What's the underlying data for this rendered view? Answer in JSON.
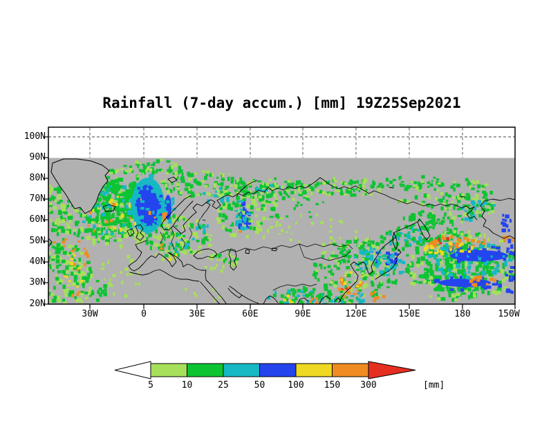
{
  "title": "Rainfall (7-day accum.) [mm] 19Z25Sep2021",
  "axes": {
    "lat_ticks": [
      "100N",
      "90N",
      "80N",
      "70N",
      "60N",
      "50N",
      "40N",
      "30N",
      "20N"
    ],
    "lon_ticks": [
      "30W",
      "0",
      "30E",
      "60E",
      "90E",
      "120E",
      "150E",
      "180",
      "150W"
    ]
  },
  "colorbar": {
    "labels": [
      "5",
      "10",
      "25",
      "50",
      "100",
      "150",
      "300"
    ],
    "unit": "[mm]",
    "segment_colors": [
      "g1",
      "g2",
      "cy",
      "bl",
      "ye",
      "or"
    ],
    "left_arrow_color": "#ffffff",
    "right_arrow_color": "re"
  },
  "palette": {
    "g1": "#a6e05a",
    "g2": "#0cc432",
    "cy": "#16b8c4",
    "bl": "#2444ee",
    "ye": "#eed822",
    "or": "#ee8c22",
    "re": "#e62e20",
    "map_bg": "#b1b1b1",
    "frame": "#000000",
    "grid": "#444444"
  },
  "chart_data": {
    "type": "heatmap",
    "title": "Rainfall (7-day accum.) [mm] 19Z25Sep2021",
    "variable": "Rainfall, 7-day accumulation",
    "unit": "mm",
    "valid_label": "19Z25Sep2021",
    "levels_mm": [
      5,
      10,
      25,
      50,
      100,
      150,
      300
    ],
    "level_colors_below_to_above": [
      "#ffffff",
      "#a6e05a",
      "#0cc432",
      "#16b8c4",
      "#2444ee",
      "#eed822",
      "#ee8c22",
      "#e62e20"
    ],
    "y_ticks": [
      "100N",
      "90N",
      "80N",
      "70N",
      "60N",
      "50N",
      "40N",
      "30N",
      "20N"
    ],
    "x_ticks": [
      "30W",
      "0",
      "30E",
      "60E",
      "90E",
      "120E",
      "150E",
      "180",
      "150W"
    ],
    "data_extent": {
      "lat_south": "20N",
      "lat_north": "90N"
    },
    "grid": "dashed, 10 deg lat x 30 deg lon",
    "no_data_color": "#b1b1b1",
    "legend_position": "bottom horizontal arrow colorbar",
    "rain_texture": {
      "base_speckles": [
        {
          "cx": 150,
          "cy": 298,
          "rx": 88,
          "ry": 52,
          "n": 240,
          "s": 4.5,
          "c": "g2"
        },
        {
          "cx": 150,
          "cy": 298,
          "rx": 92,
          "ry": 56,
          "n": 160,
          "s": 4,
          "c": "g1"
        },
        {
          "cx": 175,
          "cy": 295,
          "rx": 45,
          "ry": 35,
          "n": 110,
          "s": 5,
          "c": "g2"
        },
        {
          "cx": 95,
          "cy": 400,
          "rx": 42,
          "ry": 46,
          "n": 85,
          "s": 4,
          "c": "g1"
        },
        {
          "cx": 96,
          "cy": 396,
          "rx": 40,
          "ry": 44,
          "n": 60,
          "s": 4,
          "c": "g2"
        },
        {
          "cx": 125,
          "cy": 420,
          "rx": 30,
          "ry": 18,
          "n": 24,
          "s": 4,
          "c": "g2"
        },
        {
          "cx": 80,
          "cy": 362,
          "rx": 15,
          "ry": 30,
          "n": 20,
          "s": 4,
          "c": "g2"
        },
        {
          "cx": 175,
          "cy": 395,
          "rx": 30,
          "ry": 40,
          "n": 28,
          "s": 3.5,
          "c": "g1"
        },
        {
          "cx": 150,
          "cy": 268,
          "rx": 18,
          "ry": 14,
          "n": 13,
          "s": 4,
          "c": "g2"
        },
        {
          "cx": 225,
          "cy": 243,
          "rx": 48,
          "ry": 11,
          "n": 36,
          "s": 4,
          "c": "g2"
        },
        {
          "cx": 225,
          "cy": 243,
          "rx": 50,
          "ry": 12,
          "n": 18,
          "s": 3.5,
          "c": "g1"
        },
        {
          "cx": 295,
          "cy": 268,
          "rx": 62,
          "ry": 18,
          "n": 75,
          "s": 4,
          "c": "g2"
        },
        {
          "cx": 295,
          "cy": 268,
          "rx": 66,
          "ry": 20,
          "n": 42,
          "s": 3.5,
          "c": "g1"
        },
        {
          "cx": 252,
          "cy": 345,
          "rx": 55,
          "ry": 32,
          "n": 85,
          "s": 4,
          "c": "g1"
        },
        {
          "cx": 255,
          "cy": 342,
          "rx": 50,
          "ry": 30,
          "n": 58,
          "s": 4,
          "c": "g2"
        },
        {
          "cx": 360,
          "cy": 315,
          "rx": 48,
          "ry": 32,
          "n": 65,
          "s": 4,
          "c": "g1"
        },
        {
          "cx": 358,
          "cy": 312,
          "rx": 44,
          "ry": 30,
          "n": 48,
          "s": 4,
          "c": "g2"
        },
        {
          "cx": 395,
          "cy": 274,
          "rx": 58,
          "ry": 16,
          "n": 65,
          "s": 4,
          "c": "g2"
        },
        {
          "cx": 395,
          "cy": 276,
          "rx": 60,
          "ry": 18,
          "n": 36,
          "s": 3.5,
          "c": "g1"
        },
        {
          "cx": 500,
          "cy": 270,
          "rx": 55,
          "ry": 13,
          "n": 50,
          "s": 4,
          "c": "g2"
        },
        {
          "cx": 500,
          "cy": 272,
          "rx": 58,
          "ry": 15,
          "n": 28,
          "s": 3.5,
          "c": "g1"
        },
        {
          "cx": 600,
          "cy": 264,
          "rx": 45,
          "ry": 9,
          "n": 26,
          "s": 3.5,
          "c": "g2"
        },
        {
          "cx": 430,
          "cy": 300,
          "rx": 50,
          "ry": 20,
          "n": 18,
          "s": 3,
          "c": "g2"
        },
        {
          "cx": 460,
          "cy": 330,
          "rx": 60,
          "ry": 25,
          "n": 22,
          "s": 3,
          "c": "g1"
        },
        {
          "cx": 645,
          "cy": 290,
          "rx": 72,
          "ry": 34,
          "n": 100,
          "s": 4,
          "c": "g2"
        },
        {
          "cx": 645,
          "cy": 290,
          "rx": 76,
          "ry": 38,
          "n": 55,
          "s": 3.5,
          "c": "g1"
        },
        {
          "cx": 615,
          "cy": 330,
          "rx": 45,
          "ry": 22,
          "n": 55,
          "s": 4,
          "c": "g2"
        },
        {
          "cx": 580,
          "cy": 345,
          "rx": 30,
          "ry": 18,
          "n": 30,
          "s": 4,
          "c": "g2"
        },
        {
          "cx": 515,
          "cy": 392,
          "rx": 62,
          "ry": 46,
          "n": 140,
          "s": 4,
          "c": "g2"
        },
        {
          "cx": 515,
          "cy": 392,
          "rx": 66,
          "ry": 48,
          "n": 75,
          "s": 3.5,
          "c": "g1"
        },
        {
          "cx": 665,
          "cy": 385,
          "rx": 80,
          "ry": 50,
          "n": 160,
          "s": 4.5,
          "c": "g2"
        },
        {
          "cx": 665,
          "cy": 385,
          "rx": 85,
          "ry": 52,
          "n": 85,
          "s": 4,
          "c": "g1"
        },
        {
          "cx": 660,
          "cy": 390,
          "rx": 55,
          "ry": 35,
          "n": 100,
          "s": 5,
          "c": "g2"
        },
        {
          "cx": 320,
          "cy": 380,
          "rx": 26,
          "ry": 14,
          "n": 26,
          "s": 3.5,
          "c": "g1"
        },
        {
          "cx": 330,
          "cy": 372,
          "rx": 18,
          "ry": 10,
          "n": 11,
          "s": 3.5,
          "c": "g2"
        },
        {
          "cx": 432,
          "cy": 428,
          "rx": 42,
          "ry": 13,
          "n": 34,
          "s": 4,
          "c": "g2"
        },
        {
          "cx": 480,
          "cy": 432,
          "rx": 25,
          "ry": 10,
          "n": 18,
          "s": 4,
          "c": "g2"
        },
        {
          "cx": 300,
          "cy": 420,
          "rx": 40,
          "ry": 15,
          "n": 7,
          "s": 3,
          "c": "g1"
        }
      ],
      "blobs": [
        {
          "cx": 214,
          "cy": 297,
          "rx": 24,
          "ry": 40,
          "c": "cy"
        },
        {
          "cx": 213,
          "cy": 297,
          "rx": 15,
          "ry": 30,
          "c": "bl"
        },
        {
          "cx": 243,
          "cy": 300,
          "rx": 5,
          "ry": 18,
          "c": "bl"
        },
        {
          "cx": 693,
          "cy": 370,
          "rx": 42,
          "ry": 8,
          "c": "bl"
        },
        {
          "cx": 672,
          "cy": 409,
          "rx": 38,
          "ry": 6,
          "c": "bl"
        }
      ],
      "detail_speckles": [
        {
          "cx": 165,
          "cy": 300,
          "rx": 60,
          "ry": 40,
          "n": 38,
          "s": 4,
          "c": "cy"
        },
        {
          "cx": 170,
          "cy": 306,
          "rx": 45,
          "ry": 28,
          "n": 12,
          "s": 3.5,
          "c": "ye"
        },
        {
          "cx": 158,
          "cy": 316,
          "rx": 40,
          "ry": 26,
          "n": 9,
          "s": 3.5,
          "c": "or"
        },
        {
          "cx": 214,
          "cy": 296,
          "rx": 20,
          "ry": 36,
          "n": 40,
          "s": 4.5,
          "c": "bl"
        },
        {
          "cx": 214,
          "cy": 296,
          "rx": 27,
          "ry": 43,
          "n": 28,
          "s": 4,
          "c": "cy"
        },
        {
          "cx": 219,
          "cy": 313,
          "rx": 6,
          "ry": 8,
          "n": 3,
          "s": 3.5,
          "c": "or"
        },
        {
          "cx": 115,
          "cy": 370,
          "rx": 16,
          "ry": 22,
          "n": 12,
          "s": 3.5,
          "c": "or"
        },
        {
          "cx": 108,
          "cy": 392,
          "rx": 14,
          "ry": 25,
          "n": 9,
          "s": 3.5,
          "c": "ye"
        },
        {
          "cx": 112,
          "cy": 424,
          "rx": 8,
          "ry": 8,
          "n": 3,
          "s": 3.5,
          "c": "or"
        },
        {
          "cx": 88,
          "cy": 352,
          "rx": 12,
          "ry": 8,
          "n": 4,
          "s": 3.5,
          "c": "or"
        },
        {
          "cx": 152,
          "cy": 272,
          "rx": 12,
          "ry": 10,
          "n": 6,
          "s": 3.5,
          "c": "cy"
        },
        {
          "cx": 315,
          "cy": 282,
          "rx": 22,
          "ry": 14,
          "n": 10,
          "s": 3.5,
          "c": "cy"
        },
        {
          "cx": 243,
          "cy": 300,
          "rx": 10,
          "ry": 22,
          "n": 16,
          "s": 4,
          "c": "cy"
        },
        {
          "cx": 240,
          "cy": 312,
          "rx": 5,
          "ry": 8,
          "n": 4,
          "s": 3.5,
          "c": "or"
        },
        {
          "cx": 262,
          "cy": 352,
          "rx": 20,
          "ry": 14,
          "n": 10,
          "s": 3.5,
          "c": "cy"
        },
        {
          "cx": 295,
          "cy": 330,
          "rx": 10,
          "ry": 8,
          "n": 7,
          "s": 3.5,
          "c": "cy"
        },
        {
          "cx": 234,
          "cy": 356,
          "rx": 6,
          "ry": 6,
          "n": 3,
          "s": 3.5,
          "c": "or"
        },
        {
          "cx": 250,
          "cy": 372,
          "rx": 8,
          "ry": 6,
          "n": 3,
          "s": 3,
          "c": "ye"
        },
        {
          "cx": 352,
          "cy": 315,
          "rx": 9,
          "ry": 22,
          "n": 20,
          "s": 4,
          "c": "bl"
        },
        {
          "cx": 352,
          "cy": 315,
          "rx": 13,
          "ry": 27,
          "n": 15,
          "s": 4,
          "c": "cy"
        },
        {
          "cx": 350,
          "cy": 335,
          "rx": 5,
          "ry": 5,
          "n": 2,
          "s": 3,
          "c": "or"
        },
        {
          "cx": 388,
          "cy": 272,
          "rx": 20,
          "ry": 8,
          "n": 8,
          "s": 3.5,
          "c": "cy"
        },
        {
          "cx": 690,
          "cy": 305,
          "rx": 30,
          "ry": 18,
          "n": 15,
          "s": 4,
          "c": "cy"
        },
        {
          "cx": 735,
          "cy": 322,
          "rx": 12,
          "ry": 14,
          "n": 10,
          "s": 4,
          "c": "bl"
        },
        {
          "cx": 735,
          "cy": 345,
          "rx": 8,
          "ry": 6,
          "n": 5,
          "s": 3.5,
          "c": "or"
        },
        {
          "cx": 590,
          "cy": 340,
          "rx": 30,
          "ry": 15,
          "n": 13,
          "s": 4,
          "c": "cy"
        },
        {
          "cx": 572,
          "cy": 350,
          "rx": 10,
          "ry": 8,
          "n": 7,
          "s": 3.5,
          "c": "cy"
        },
        {
          "cx": 538,
          "cy": 376,
          "rx": 26,
          "ry": 18,
          "n": 26,
          "s": 4,
          "c": "cy"
        },
        {
          "cx": 505,
          "cy": 415,
          "rx": 20,
          "ry": 16,
          "n": 13,
          "s": 4,
          "c": "or"
        },
        {
          "cx": 512,
          "cy": 407,
          "rx": 18,
          "ry": 14,
          "n": 9,
          "s": 3.5,
          "c": "ye"
        },
        {
          "cx": 500,
          "cy": 421,
          "rx": 6,
          "ry": 5,
          "n": 2,
          "s": 3,
          "c": "re"
        },
        {
          "cx": 545,
          "cy": 428,
          "rx": 12,
          "ry": 8,
          "n": 6,
          "s": 3.5,
          "c": "or"
        },
        {
          "cx": 520,
          "cy": 431,
          "rx": 12,
          "ry": 7,
          "n": 8,
          "s": 3.5,
          "c": "cy"
        },
        {
          "cx": 560,
          "cy": 372,
          "rx": 18,
          "ry": 12,
          "n": 13,
          "s": 4,
          "c": "bl"
        },
        {
          "cx": 565,
          "cy": 382,
          "rx": 25,
          "ry": 18,
          "n": 20,
          "s": 4,
          "c": "cy"
        },
        {
          "cx": 680,
          "cy": 378,
          "rx": 62,
          "ry": 28,
          "n": 55,
          "s": 4.5,
          "c": "cy"
        },
        {
          "cx": 690,
          "cy": 368,
          "rx": 50,
          "ry": 12,
          "n": 38,
          "s": 4.5,
          "c": "bl"
        },
        {
          "cx": 675,
          "cy": 410,
          "rx": 55,
          "ry": 10,
          "n": 28,
          "s": 4,
          "c": "bl"
        },
        {
          "cx": 660,
          "cy": 352,
          "rx": 45,
          "ry": 10,
          "n": 26,
          "s": 4,
          "c": "or"
        },
        {
          "cx": 650,
          "cy": 360,
          "rx": 40,
          "ry": 8,
          "n": 16,
          "s": 4,
          "c": "ye"
        },
        {
          "cx": 642,
          "cy": 350,
          "rx": 10,
          "ry": 6,
          "n": 3,
          "s": 3.5,
          "c": "re"
        },
        {
          "cx": 700,
          "cy": 408,
          "rx": 28,
          "ry": 8,
          "n": 12,
          "s": 4,
          "c": "or"
        },
        {
          "cx": 738,
          "cy": 385,
          "rx": 10,
          "ry": 40,
          "n": 18,
          "s": 4.5,
          "c": "bl"
        },
        {
          "cx": 432,
          "cy": 430,
          "rx": 44,
          "ry": 12,
          "n": 18,
          "s": 3.5,
          "c": "cy"
        },
        {
          "cx": 455,
          "cy": 432,
          "rx": 12,
          "ry": 7,
          "n": 7,
          "s": 3.5,
          "c": "or"
        },
        {
          "cx": 418,
          "cy": 434,
          "rx": 10,
          "ry": 6,
          "n": 4,
          "s": 3.5,
          "c": "ye"
        },
        {
          "cx": 478,
          "cy": 435,
          "rx": 20,
          "ry": 8,
          "n": 7,
          "s": 3.5,
          "c": "cy"
        }
      ]
    }
  }
}
